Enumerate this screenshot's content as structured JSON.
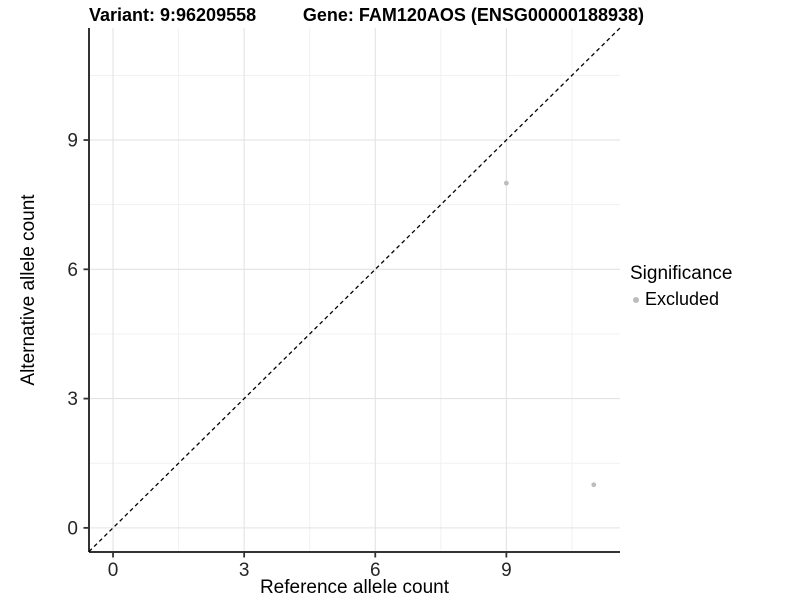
{
  "figure": {
    "title_left": "Variant: 9:96209558",
    "title_right": "Gene: FAM120AOS (ENSG00000188938)"
  },
  "chart_data": {
    "type": "scatter",
    "title": "Variant: 9:96209558 — Gene: FAM120AOS (ENSG00000188938)",
    "xlabel": "Reference allele count",
    "ylabel": "Alternative allele count",
    "xlim": [
      -0.55,
      11.6
    ],
    "ylim": [
      -0.56,
      11.6
    ],
    "x_ticks": [
      0,
      3,
      6,
      9
    ],
    "y_ticks": [
      0,
      3,
      6,
      9
    ],
    "x_minor_ticks": [
      1.5,
      4.5,
      7.5,
      10.5
    ],
    "y_minor_ticks": [
      1.5,
      4.5,
      7.5,
      10.5
    ],
    "grid": true,
    "series": [
      {
        "name": "Excluded",
        "points": [
          [
            9,
            8
          ],
          [
            11,
            1
          ]
        ],
        "color": "#bdbdbd"
      }
    ],
    "reference_line": {
      "type": "identity y=x",
      "style": "dashed",
      "color": "#000000"
    },
    "legend": {
      "title": "Significance",
      "position": "right",
      "entries": [
        {
          "label": "Excluded",
          "color": "#bdbdbd"
        }
      ]
    },
    "colors": {
      "background": "#ffffff",
      "grid_major": "#e3e3e3",
      "grid_minor": "#f1f1f1",
      "axis": "#333333",
      "tick_label": "#262626"
    }
  }
}
